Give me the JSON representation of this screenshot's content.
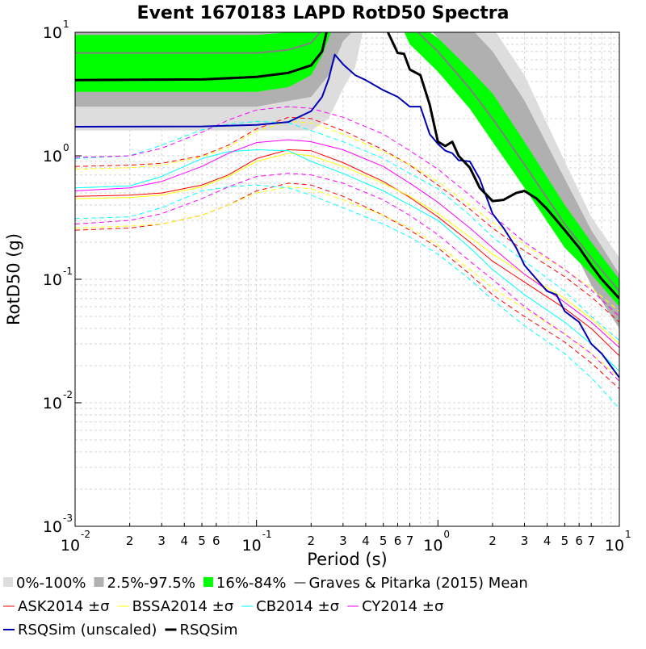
{
  "chart_data": {
    "type": "line",
    "title": "Event 1670183 LAPD RotD50 Spectra",
    "xlabel": "Period (s)",
    "ylabel": "RotD50 (g)",
    "xscale": "log",
    "yscale": "log",
    "xlim": [
      0.01,
      10
    ],
    "ylim": [
      0.001,
      10
    ],
    "grid": true,
    "legend_position": "bottom",
    "x_major_ticks": [
      {
        "base": "10",
        "exp": "-2",
        "value": 0.01
      },
      {
        "base": "10",
        "exp": "-1",
        "value": 0.1
      },
      {
        "base": "10",
        "exp": "0",
        "value": 1
      },
      {
        "base": "10",
        "exp": "1",
        "value": 10
      }
    ],
    "x_minor_ticks": [
      {
        "label": "2",
        "value": 0.02
      },
      {
        "label": "3",
        "value": 0.03
      },
      {
        "label": "4",
        "value": 0.04
      },
      {
        "label": "5",
        "value": 0.05
      },
      {
        "label": "6",
        "value": 0.06
      },
      {
        "label": "2",
        "value": 0.2
      },
      {
        "label": "3",
        "value": 0.3
      },
      {
        "label": "4",
        "value": 0.4
      },
      {
        "label": "5",
        "value": 0.5
      },
      {
        "label": "6",
        "value": 0.6
      },
      {
        "label": "7",
        "value": 0.7
      },
      {
        "label": "2",
        "value": 2
      },
      {
        "label": "3",
        "value": 3
      },
      {
        "label": "4",
        "value": 4
      },
      {
        "label": "5",
        "value": 5
      },
      {
        "label": "6",
        "value": 6
      },
      {
        "label": "7",
        "value": 7
      }
    ],
    "y_major_ticks": [
      {
        "base": "10",
        "exp": "1",
        "value": 10
      },
      {
        "base": "10",
        "exp": "0",
        "value": 1
      },
      {
        "base": "10",
        "exp": "-1",
        "value": 0.1
      },
      {
        "base": "10",
        "exp": "-2",
        "value": 0.01
      },
      {
        "base": "10",
        "exp": "-3",
        "value": 0.001
      }
    ],
    "bands": [
      {
        "name": "0%-100%",
        "color": "#dddddd",
        "x": [
          0.01,
          0.1,
          0.2,
          0.25,
          0.3,
          0.35,
          0.4,
          0.5,
          0.7,
          1,
          1.5,
          2,
          3,
          5,
          7,
          10
        ],
        "lower": [
          1.6,
          1.6,
          1.6,
          2.0,
          3.5,
          5.2,
          13,
          13,
          13,
          12,
          6.5,
          3.5,
          1.1,
          0.3,
          0.12,
          0.05
        ],
        "upper": [
          13,
          13,
          13,
          13,
          13,
          13,
          13,
          13,
          13,
          13,
          13,
          11,
          4.5,
          0.9,
          0.32,
          0.15
        ]
      },
      {
        "name": "2.5%-97.5%",
        "color": "#b0b0b0",
        "x": [
          0.01,
          0.1,
          0.2,
          0.25,
          0.3,
          0.4,
          0.6,
          0.8,
          1,
          1.5,
          2,
          3,
          5,
          7,
          10
        ],
        "lower": [
          2.5,
          2.5,
          3.0,
          4.5,
          8.5,
          13,
          13,
          13,
          9,
          4.5,
          2.5,
          0.85,
          0.24,
          0.09,
          0.04
        ],
        "upper": [
          13,
          13,
          13,
          13,
          13,
          13,
          13,
          13,
          13,
          11,
          7,
          2.8,
          0.65,
          0.25,
          0.11
        ]
      },
      {
        "name": "16%-84%",
        "color": "#00ff00",
        "x": [
          0.01,
          0.1,
          0.15,
          0.2,
          0.23,
          0.25,
          0.28,
          0.3,
          0.6,
          0.7,
          1,
          1.5,
          2,
          3,
          5,
          7,
          10
        ],
        "lower": [
          3.3,
          3.3,
          3.6,
          4.5,
          6.5,
          9,
          13,
          13,
          13,
          8,
          4.8,
          2.4,
          1.3,
          0.55,
          0.18,
          0.11,
          0.06
        ],
        "upper": [
          9.5,
          9.5,
          10,
          11,
          13,
          13,
          13,
          13,
          13,
          13,
          9,
          5,
          3.2,
          1.3,
          0.4,
          0.2,
          0.1
        ]
      }
    ],
    "series": [
      {
        "name": "Graves & Pitarka (2015) Mean",
        "color": "#808080",
        "width": 2,
        "dash": "",
        "x": [
          0.01,
          0.1,
          0.15,
          0.2,
          0.23,
          0.25,
          0.6,
          0.7,
          1,
          1.5,
          2,
          3,
          5,
          7,
          10
        ],
        "y": [
          6.8,
          6.8,
          7.2,
          8.2,
          10.5,
          13,
          13,
          11.5,
          7,
          3.5,
          2.0,
          0.85,
          0.28,
          0.15,
          0.08
        ]
      },
      {
        "name": "ASK2014 ±σ",
        "color": "#ff0000",
        "width": 1,
        "dash": "",
        "x": [
          0.01,
          0.02,
          0.03,
          0.05,
          0.07,
          0.1,
          0.15,
          0.2,
          0.3,
          0.5,
          0.7,
          1,
          1.5,
          2,
          3,
          5,
          7,
          10
        ],
        "y": [
          0.47,
          0.48,
          0.5,
          0.58,
          0.7,
          0.95,
          1.12,
          1.1,
          0.88,
          0.62,
          0.46,
          0.32,
          0.2,
          0.14,
          0.095,
          0.058,
          0.04,
          0.024
        ]
      },
      {
        "name": "ASK2014 +σ",
        "color": "#ff0000",
        "width": 1,
        "dash": "6,4",
        "x": [
          0.01,
          0.02,
          0.03,
          0.05,
          0.07,
          0.1,
          0.15,
          0.2,
          0.3,
          0.5,
          0.7,
          1,
          1.5,
          2,
          3,
          5,
          7,
          10
        ],
        "y": [
          0.82,
          0.84,
          0.87,
          1.0,
          1.22,
          1.65,
          2.05,
          2.0,
          1.6,
          1.12,
          0.84,
          0.58,
          0.37,
          0.26,
          0.17,
          0.105,
          0.072,
          0.045
        ]
      },
      {
        "name": "ASK2014 -σ",
        "color": "#ff0000",
        "width": 1,
        "dash": "6,4",
        "x": [
          0.01,
          0.02,
          0.03,
          0.05,
          0.07,
          0.1,
          0.15,
          0.2,
          0.3,
          0.5,
          0.7,
          1,
          1.5,
          2,
          3,
          5,
          7,
          10
        ],
        "y": [
          0.25,
          0.26,
          0.28,
          0.33,
          0.4,
          0.52,
          0.6,
          0.58,
          0.47,
          0.33,
          0.25,
          0.18,
          0.11,
          0.075,
          0.05,
          0.031,
          0.021,
          0.013
        ]
      },
      {
        "name": "BSSA2014 ±σ",
        "color": "#ffff00",
        "width": 1,
        "dash": "",
        "x": [
          0.01,
          0.02,
          0.03,
          0.05,
          0.07,
          0.1,
          0.15,
          0.2,
          0.3,
          0.5,
          0.7,
          1,
          1.5,
          2,
          3,
          5,
          7,
          10
        ],
        "y": [
          0.45,
          0.46,
          0.48,
          0.56,
          0.68,
          0.9,
          1.05,
          1.0,
          0.82,
          0.6,
          0.47,
          0.34,
          0.22,
          0.16,
          0.11,
          0.07,
          0.048,
          0.03
        ]
      },
      {
        "name": "BSSA2014 +σ",
        "color": "#ffff00",
        "width": 1,
        "dash": "6,4",
        "x": [
          0.01,
          0.02,
          0.03,
          0.05,
          0.07,
          0.1,
          0.15,
          0.2,
          0.3,
          0.5,
          0.7,
          1,
          1.5,
          2,
          3,
          5,
          7,
          10
        ],
        "y": [
          0.78,
          0.8,
          0.84,
          0.98,
          1.18,
          1.58,
          1.9,
          1.85,
          1.5,
          1.08,
          0.85,
          0.62,
          0.4,
          0.29,
          0.19,
          0.12,
          0.085,
          0.055
        ]
      },
      {
        "name": "BSSA2014 -σ",
        "color": "#ffff00",
        "width": 1,
        "dash": "6,4",
        "x": [
          0.01,
          0.02,
          0.03,
          0.05,
          0.07,
          0.1,
          0.15,
          0.2,
          0.3,
          0.5,
          0.7,
          1,
          1.5,
          2,
          3,
          5,
          7,
          10
        ],
        "y": [
          0.26,
          0.27,
          0.28,
          0.33,
          0.4,
          0.5,
          0.56,
          0.54,
          0.44,
          0.33,
          0.26,
          0.19,
          0.12,
          0.085,
          0.058,
          0.036,
          0.025,
          0.016
        ]
      },
      {
        "name": "CB2014 ±σ",
        "color": "#00ffff",
        "width": 1,
        "dash": "",
        "x": [
          0.01,
          0.02,
          0.03,
          0.05,
          0.07,
          0.1,
          0.15,
          0.2,
          0.3,
          0.5,
          0.7,
          1,
          1.5,
          2,
          3,
          5,
          7,
          10
        ],
        "y": [
          0.55,
          0.57,
          0.68,
          0.95,
          1.08,
          1.12,
          1.1,
          0.9,
          0.72,
          0.52,
          0.4,
          0.3,
          0.18,
          0.12,
          0.075,
          0.045,
          0.03,
          0.018
        ]
      },
      {
        "name": "CB2014 +σ",
        "color": "#00ffff",
        "width": 1,
        "dash": "6,4",
        "x": [
          0.01,
          0.02,
          0.03,
          0.05,
          0.07,
          0.1,
          0.15,
          0.2,
          0.3,
          0.5,
          0.7,
          1,
          1.5,
          2,
          3,
          5,
          7,
          10
        ],
        "y": [
          0.95,
          1.0,
          1.22,
          1.62,
          1.8,
          1.9,
          1.85,
          1.6,
          1.3,
          0.95,
          0.72,
          0.54,
          0.33,
          0.22,
          0.14,
          0.08,
          0.05,
          0.032
        ]
      },
      {
        "name": "CB2014 -σ",
        "color": "#00ffff",
        "width": 1,
        "dash": "6,4",
        "x": [
          0.01,
          0.02,
          0.03,
          0.05,
          0.07,
          0.1,
          0.15,
          0.2,
          0.3,
          0.5,
          0.7,
          1,
          1.5,
          2,
          3,
          5,
          7,
          10
        ],
        "y": [
          0.31,
          0.32,
          0.38,
          0.52,
          0.56,
          0.58,
          0.55,
          0.48,
          0.38,
          0.28,
          0.22,
          0.16,
          0.1,
          0.068,
          0.042,
          0.025,
          0.016,
          0.009
        ]
      },
      {
        "name": "CY2014 ±σ",
        "color": "#ff00ff",
        "width": 1,
        "dash": "",
        "x": [
          0.01,
          0.02,
          0.03,
          0.05,
          0.07,
          0.1,
          0.15,
          0.2,
          0.3,
          0.5,
          0.7,
          1,
          1.5,
          2,
          3,
          5,
          7,
          10
        ],
        "y": [
          0.52,
          0.55,
          0.62,
          0.82,
          1.05,
          1.28,
          1.35,
          1.3,
          1.12,
          0.82,
          0.6,
          0.42,
          0.26,
          0.18,
          0.11,
          0.065,
          0.045,
          0.028
        ]
      },
      {
        "name": "CY2014 +σ",
        "color": "#ff00ff",
        "width": 1,
        "dash": "6,4",
        "x": [
          0.01,
          0.02,
          0.03,
          0.05,
          0.07,
          0.1,
          0.15,
          0.2,
          0.3,
          0.5,
          0.7,
          1,
          1.5,
          2,
          3,
          5,
          7,
          10
        ],
        "y": [
          0.97,
          1.0,
          1.15,
          1.55,
          1.95,
          2.35,
          2.5,
          2.42,
          2.05,
          1.5,
          1.1,
          0.78,
          0.48,
          0.33,
          0.2,
          0.12,
          0.082,
          0.05
        ]
      },
      {
        "name": "CY2014 -σ",
        "color": "#ff00ff",
        "width": 1,
        "dash": "6,4",
        "x": [
          0.01,
          0.02,
          0.03,
          0.05,
          0.07,
          0.1,
          0.15,
          0.2,
          0.3,
          0.5,
          0.7,
          1,
          1.5,
          2,
          3,
          5,
          7,
          10
        ],
        "y": [
          0.28,
          0.3,
          0.34,
          0.45,
          0.56,
          0.68,
          0.72,
          0.7,
          0.6,
          0.44,
          0.33,
          0.23,
          0.14,
          0.1,
          0.06,
          0.036,
          0.025,
          0.015
        ]
      },
      {
        "name": "RSQSim (unscaled)",
        "color": "#0000b4",
        "width": 2,
        "dash": "",
        "x": [
          0.01,
          0.05,
          0.1,
          0.15,
          0.2,
          0.23,
          0.25,
          0.27,
          0.3,
          0.35,
          0.4,
          0.5,
          0.6,
          0.7,
          0.8,
          0.9,
          1.0,
          1.1,
          1.2,
          1.3,
          1.5,
          1.7,
          2.0,
          2.3,
          2.7,
          3.0,
          3.5,
          4.0,
          4.5,
          5.0,
          6.0,
          7.0,
          8.0,
          10.0
        ],
        "y": [
          1.72,
          1.73,
          1.78,
          1.88,
          2.3,
          3.0,
          4.2,
          6.6,
          5.5,
          4.5,
          4.1,
          3.4,
          3.0,
          2.5,
          2.5,
          1.5,
          1.25,
          1.1,
          1.05,
          0.92,
          0.9,
          0.65,
          0.34,
          0.26,
          0.18,
          0.13,
          0.1,
          0.08,
          0.075,
          0.055,
          0.045,
          0.03,
          0.025,
          0.016
        ]
      },
      {
        "name": "RSQSim",
        "color": "#000000",
        "width": 3,
        "dash": "",
        "x": [
          0.01,
          0.05,
          0.1,
          0.15,
          0.2,
          0.23,
          0.25,
          0.4,
          0.5,
          0.6,
          0.65,
          0.7,
          0.8,
          0.9,
          1.0,
          1.1,
          1.2,
          1.3,
          1.5,
          1.7,
          2.0,
          2.3,
          2.7,
          3.0,
          3.5,
          4.0,
          5.0,
          6.0,
          7.0,
          8.0,
          10.0
        ],
        "y": [
          4.1,
          4.15,
          4.35,
          4.7,
          5.4,
          7.0,
          12.0,
          12.0,
          12.0,
          6.8,
          6.7,
          5.0,
          4.5,
          2.6,
          1.3,
          1.2,
          1.3,
          1.0,
          0.8,
          0.55,
          0.43,
          0.44,
          0.5,
          0.52,
          0.45,
          0.37,
          0.25,
          0.18,
          0.13,
          0.1,
          0.07
        ]
      }
    ],
    "legend": {
      "rows": [
        [
          {
            "type": "band",
            "color": "#dddddd",
            "label": "0%-100%"
          },
          {
            "type": "band",
            "color": "#b0b0b0",
            "label": "2.5%-97.5%"
          },
          {
            "type": "band",
            "color": "#00ff00",
            "label": "16%-84%"
          },
          {
            "type": "line",
            "color": "#808080",
            "width": 2,
            "label": "Graves & Pitarka (2015) Mean"
          }
        ],
        [
          {
            "type": "line",
            "color": "#ff0000",
            "width": 1,
            "label": "ASK2014 ±σ"
          },
          {
            "type": "line",
            "color": "#ffff00",
            "width": 1,
            "label": "BSSA2014 ±σ"
          },
          {
            "type": "line",
            "color": "#00ffff",
            "width": 1,
            "label": "CB2014 ±σ"
          },
          {
            "type": "line",
            "color": "#ff00ff",
            "width": 1,
            "label": "CY2014 ±σ"
          }
        ],
        [
          {
            "type": "line",
            "color": "#0000b4",
            "width": 2,
            "label": "RSQSim (unscaled)"
          },
          {
            "type": "line",
            "color": "#000000",
            "width": 3,
            "label": "RSQSim"
          }
        ]
      ]
    }
  }
}
